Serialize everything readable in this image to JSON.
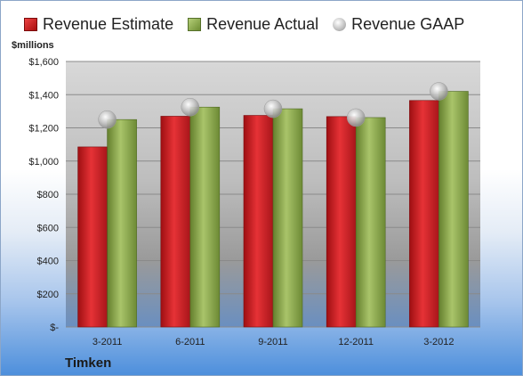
{
  "legend": {
    "estimate": "Revenue Estimate",
    "actual": "Revenue Actual",
    "gaap": "Revenue GAAP"
  },
  "unit_label": "$millions",
  "company": "Timken",
  "colors": {
    "estimate": "#c8171b",
    "actual": "#8aa64a",
    "gaap": "#c0c0c0"
  },
  "chart_data": {
    "type": "bar",
    "categories": [
      "3-2011",
      "6-2011",
      "9-2011",
      "12-2011",
      "3-2012"
    ],
    "series": [
      {
        "name": "Revenue Estimate",
        "values": [
          1085,
          1270,
          1275,
          1268,
          1365
        ]
      },
      {
        "name": "Revenue Actual",
        "values": [
          1250,
          1325,
          1315,
          1262,
          1420
        ]
      },
      {
        "name": "Revenue GAAP",
        "type": "scatter",
        "values": [
          1250,
          1325,
          1315,
          1262,
          1420
        ]
      }
    ],
    "ylabel": "$millions",
    "ylim": [
      0,
      1600
    ],
    "yticks": [
      0,
      200,
      400,
      600,
      800,
      1000,
      1200,
      1400,
      1600
    ],
    "ytick_labels": [
      "$-",
      "$200",
      "$400",
      "$600",
      "$800",
      "$1,000",
      "$1,200",
      "$1,400",
      "$1,600"
    ],
    "grid": true,
    "legend_position": "top"
  }
}
